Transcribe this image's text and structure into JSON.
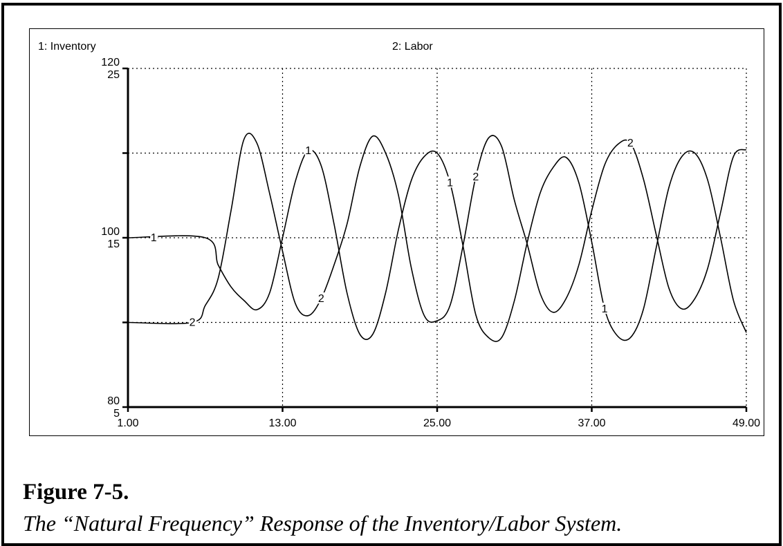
{
  "chart_data": {
    "type": "line",
    "title": "",
    "series": [
      {
        "name": "1: Inventory",
        "axis_range": [
          80,
          120
        ],
        "x": [
          1,
          7,
          8,
          9,
          10,
          11,
          12,
          13,
          14,
          15,
          16,
          17,
          18,
          19,
          20,
          21,
          22,
          23,
          24,
          25,
          26,
          27,
          28,
          29,
          30,
          31,
          32,
          33,
          34,
          35,
          36,
          37,
          38,
          39,
          40,
          41,
          42,
          43,
          44,
          45,
          46,
          47,
          48,
          49
        ],
        "values": [
          100,
          100,
          96.8,
          94.2,
          92.6,
          91.5,
          93.5,
          100.0,
          106.7,
          110.3,
          108.5,
          101.6,
          93.5,
          88.6,
          88.6,
          93.5,
          101.0,
          106.8,
          109.6,
          110.0,
          106.5,
          99.1,
          90.9,
          88.2,
          88.2,
          92.6,
          99.5,
          105.3,
          108.3,
          109.5,
          106.5,
          99.5,
          91.6,
          88.4,
          88.2,
          91.5,
          98.8,
          106.0,
          109.6,
          110.0,
          106.8,
          100.0,
          92.6,
          88.8
        ],
        "label_marker": "1"
      },
      {
        "name": "2: Labor",
        "axis_range": [
          5,
          25
        ],
        "x": [
          1,
          6,
          7,
          8,
          9,
          10,
          11,
          12,
          13,
          14,
          15,
          16,
          17,
          18,
          19,
          20,
          21,
          22,
          23,
          24,
          25,
          26,
          27,
          28,
          29,
          30,
          31,
          32,
          33,
          34,
          35,
          36,
          37,
          38,
          39,
          40,
          41,
          42,
          43,
          44,
          45,
          46,
          47,
          48,
          49
        ],
        "values": [
          10.0,
          10.0,
          11.0,
          12.6,
          16.6,
          20.8,
          20.6,
          17.6,
          14.2,
          11.1,
          10.4,
          11.4,
          13.4,
          15.8,
          19.2,
          21.0,
          20.0,
          17.5,
          13.2,
          10.4,
          10.1,
          11.0,
          14.5,
          18.6,
          20.9,
          20.4,
          17.2,
          14.6,
          11.7,
          10.6,
          11.4,
          13.4,
          16.6,
          19.3,
          20.5,
          20.6,
          18.5,
          15.2,
          12.0,
          10.8,
          11.4,
          13.2,
          16.5,
          19.8,
          20.2
        ],
        "label_marker": "2"
      }
    ],
    "x_ticks": [
      "1.00",
      "13.00",
      "25.00",
      "37.00",
      "49.00"
    ],
    "x_tick_values": [
      1,
      13,
      25,
      37,
      49
    ],
    "xlim": [
      1,
      49
    ],
    "y_ticks_series1": [
      "120",
      "100",
      "80"
    ],
    "y_ticks_series2": [
      "25",
      "15",
      "5"
    ],
    "grid": true,
    "grid_style": "dotted",
    "line_color": "#000000",
    "legend": [
      "1: Inventory",
      "2: Labor"
    ]
  },
  "caption": {
    "number": "Figure 7-5.",
    "title": "The “Natural Frequency” Response of the Inventory/Labor System."
  }
}
